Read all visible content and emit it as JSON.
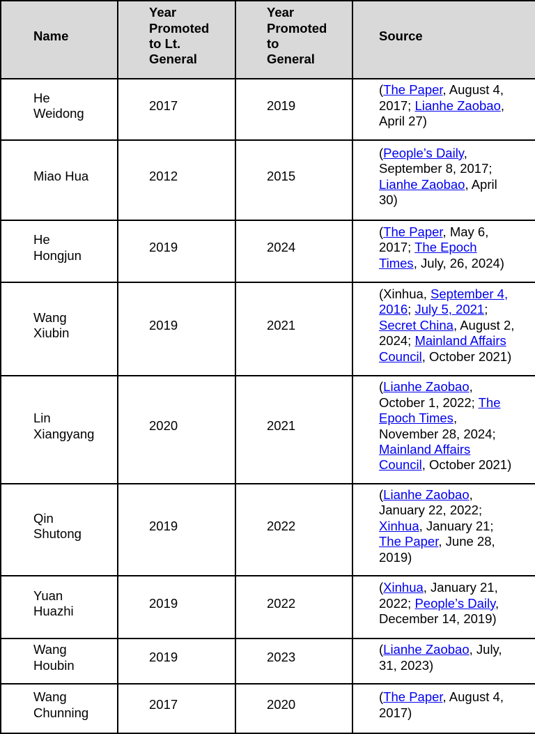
{
  "table": {
    "headers": [
      {
        "label": "Name"
      },
      {
        "label": "Year\nPromoted\nto Lt.\nGeneral"
      },
      {
        "label": "Year\nPromoted\nto\nGeneral"
      },
      {
        "label": "Source"
      }
    ],
    "rows": [
      {
        "name": "He\nWeidong",
        "lt_general_year": "2017",
        "general_year": "2019",
        "source_parts": [
          {
            "text": "("
          },
          {
            "text": "The Paper",
            "link": true
          },
          {
            "text": ", August 4,\n2017; "
          },
          {
            "text": "Lianhe Zaobao",
            "link": true
          },
          {
            "text": ",\nApril 27)"
          }
        ]
      },
      {
        "name": "Miao Hua",
        "lt_general_year": "2012",
        "general_year": "2015",
        "source_parts": [
          {
            "text": "("
          },
          {
            "text": "People’s Daily",
            "link": true
          },
          {
            "text": ",\nSeptember 8, 2017;\n"
          },
          {
            "text": "Lianhe Zaobao",
            "link": true
          },
          {
            "text": ", April\n30)"
          }
        ]
      },
      {
        "name": "He\nHongjun",
        "lt_general_year": "2019",
        "general_year": "2024",
        "source_parts": [
          {
            "text": "("
          },
          {
            "text": "The Paper",
            "link": true
          },
          {
            "text": ", May 6,\n2017; "
          },
          {
            "text": "The Epoch\nTimes",
            "link": true
          },
          {
            "text": ", July, 26, 2024)"
          }
        ]
      },
      {
        "name": "Wang\nXiubin",
        "lt_general_year": "2019",
        "general_year": "2021",
        "source_parts": [
          {
            "text": "(Xinhua, "
          },
          {
            "text": "September 4,\n2016",
            "link": true
          },
          {
            "text": "; "
          },
          {
            "text": "July 5, 2021",
            "link": true
          },
          {
            "text": ";\n"
          },
          {
            "text": "Secret China",
            "link": true
          },
          {
            "text": ", August 2,\n2024; "
          },
          {
            "text": "Mainland Affairs\nCouncil",
            "link": true
          },
          {
            "text": ", October 2021)"
          }
        ]
      },
      {
        "name": "Lin\nXiangyang",
        "lt_general_year": "2020",
        "general_year": "2021",
        "source_parts": [
          {
            "text": "("
          },
          {
            "text": "Lianhe Zaobao",
            "link": true
          },
          {
            "text": ",\nOctober 1, 2022; "
          },
          {
            "text": "The\nEpoch Times",
            "link": true
          },
          {
            "text": ",\nNovember 28, 2024;\n"
          },
          {
            "text": "Mainland Affairs\nCouncil",
            "link": true
          },
          {
            "text": ", October 2021)"
          }
        ]
      },
      {
        "name": "Qin\nShutong",
        "lt_general_year": "2019",
        "general_year": "2022",
        "source_parts": [
          {
            "text": "("
          },
          {
            "text": "Lianhe Zaobao",
            "link": true
          },
          {
            "text": ",\nJanuary 22, 2022;\n"
          },
          {
            "text": "Xinhua",
            "link": true
          },
          {
            "text": ", January 21;\n"
          },
          {
            "text": "The Paper",
            "link": true
          },
          {
            "text": ", June 28,\n2019)"
          }
        ]
      },
      {
        "name": "Yuan\nHuazhi",
        "lt_general_year": "2019",
        "general_year": "2022",
        "source_parts": [
          {
            "text": "("
          },
          {
            "text": "Xinhua",
            "link": true
          },
          {
            "text": ", January 21,\n2022; "
          },
          {
            "text": "People’s Daily",
            "link": true
          },
          {
            "text": ",\nDecember 14, 2019)"
          }
        ]
      },
      {
        "name": "Wang\nHoubin",
        "lt_general_year": "2019",
        "general_year": "2023",
        "source_parts": [
          {
            "text": "("
          },
          {
            "text": "Lianhe Zaobao",
            "link": true
          },
          {
            "text": ", July,\n31, 2023)"
          }
        ]
      },
      {
        "name": "Wang\nChunning",
        "lt_general_year": "2017",
        "general_year": "2020",
        "source_parts": [
          {
            "text": "("
          },
          {
            "text": "The Paper",
            "link": true
          },
          {
            "text": ", August 4,\n2017)"
          }
        ]
      }
    ]
  },
  "colors": {
    "link_blue": "#0000EE",
    "header_background": "#D9D9D9",
    "border": "#000000"
  }
}
